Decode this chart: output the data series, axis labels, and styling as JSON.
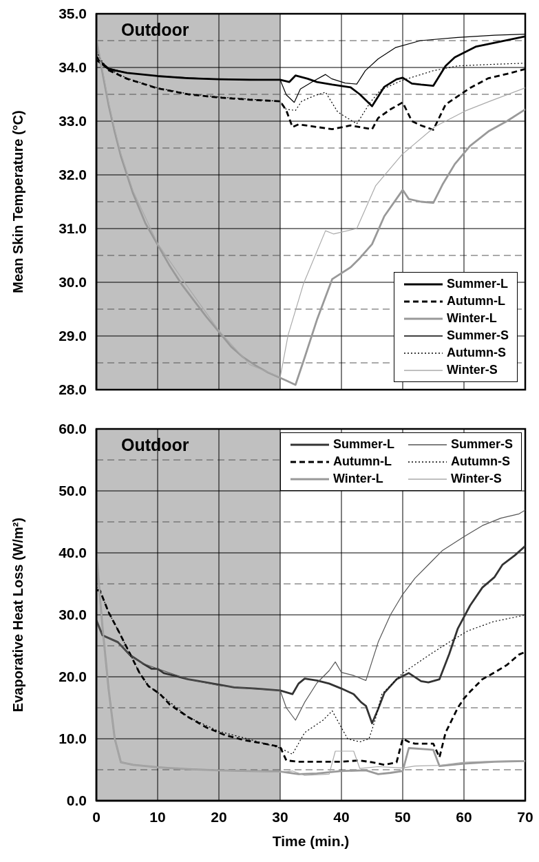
{
  "chart_data": [
    {
      "type": "line",
      "ylabel": "Mean Skin Temperature (°C)",
      "xlim": [
        0,
        70
      ],
      "xticks": [
        0,
        10,
        20,
        30,
        40,
        50,
        60,
        70
      ],
      "ylim": [
        28,
        35
      ],
      "yticks": [
        {
          "value": 28,
          "label": "28.0"
        },
        {
          "value": 28.5,
          "label": null
        },
        {
          "value": 29,
          "label": "29.0"
        },
        {
          "value": 29.5,
          "label": null
        },
        {
          "value": 30,
          "label": "30.0"
        },
        {
          "value": 30.5,
          "label": null
        },
        {
          "value": 31,
          "label": "31.0"
        },
        {
          "value": 31.5,
          "label": null
        },
        {
          "value": 32,
          "label": "32.0"
        },
        {
          "value": 32.5,
          "label": null
        },
        {
          "value": 33,
          "label": "33.0"
        },
        {
          "value": 33.5,
          "label": null
        },
        {
          "value": 34,
          "label": "34.0"
        },
        {
          "value": 34.5,
          "label": null
        },
        {
          "value": 35,
          "label": "35.0"
        }
      ],
      "tick_labels": "y",
      "grid": true,
      "legend": "bottom right",
      "marker": "none",
      "bands": [
        {
          "axis": "x",
          "from": 0,
          "to": 30,
          "label": "Outdoor",
          "color": "#c0c0c0"
        }
      ],
      "series": [
        {
          "name": "Summer-L",
          "color": "#000000",
          "line_style": "solid",
          "x": [
            0,
            2,
            5,
            10,
            15,
            20,
            25,
            30,
            31.5,
            32.5,
            34.5,
            36,
            38.5,
            41.5,
            43,
            45,
            47,
            49,
            50,
            51.5,
            53,
            55,
            57,
            58.5,
            62,
            65,
            70
          ],
          "values": [
            34.14,
            33.97,
            33.9,
            33.84,
            33.8,
            33.78,
            33.77,
            33.77,
            33.73,
            33.85,
            33.79,
            33.73,
            33.68,
            33.63,
            33.5,
            33.28,
            33.64,
            33.78,
            33.81,
            33.7,
            33.68,
            33.66,
            34.03,
            34.19,
            34.39,
            34.46,
            34.58
          ]
        },
        {
          "name": "Autumn-L",
          "color": "#000000",
          "line_style": "dashed",
          "x": [
            0,
            2,
            5,
            10,
            15,
            20,
            25,
            30,
            31,
            32,
            33,
            35.5,
            38.5,
            41.5,
            45,
            46,
            48,
            50,
            51.5,
            53,
            55,
            57,
            61,
            64,
            67,
            70
          ],
          "values": [
            34.2,
            33.95,
            33.79,
            33.61,
            33.5,
            33.44,
            33.4,
            33.37,
            33.2,
            32.89,
            32.94,
            32.9,
            32.85,
            32.92,
            32.85,
            33.06,
            33.22,
            33.35,
            33.0,
            32.92,
            32.84,
            33.31,
            33.62,
            33.8,
            33.88,
            33.97
          ]
        },
        {
          "name": "Winter-L",
          "color": "#999999",
          "line_style": "solid",
          "x": [
            0,
            1,
            2,
            3,
            4,
            5,
            6,
            8,
            10,
            12,
            14,
            16,
            18,
            20,
            22,
            24,
            26,
            28,
            30,
            31,
            32.5,
            34,
            36,
            38.5,
            41.5,
            43,
            45,
            47,
            50,
            51,
            53,
            55,
            56.5,
            58.5,
            61,
            64,
            67,
            70
          ],
          "values": [
            34.5,
            33.9,
            33.3,
            32.8,
            32.35,
            32.0,
            31.65,
            31.1,
            30.7,
            30.3,
            29.95,
            29.65,
            29.35,
            29.08,
            28.8,
            28.6,
            28.45,
            28.32,
            28.22,
            28.17,
            28.09,
            28.6,
            29.3,
            30.06,
            30.28,
            30.45,
            30.71,
            31.23,
            31.72,
            31.55,
            31.5,
            31.48,
            31.82,
            32.2,
            32.54,
            32.81,
            33.0,
            33.22
          ]
        },
        {
          "name": "Summer-S",
          "color": "#000000",
          "line_style": "solid",
          "x": [
            0,
            2,
            5,
            10,
            20,
            30,
            31,
            32.3,
            33.3,
            35.5,
            37.4,
            38.4,
            40.6,
            42.5,
            43.9,
            46,
            48.8,
            52.9,
            59,
            65,
            70
          ],
          "values": [
            34.18,
            33.99,
            33.9,
            33.84,
            33.78,
            33.77,
            33.49,
            33.35,
            33.6,
            33.75,
            33.87,
            33.79,
            33.71,
            33.69,
            33.94,
            34.16,
            34.37,
            34.5,
            34.56,
            34.6,
            34.62
          ]
        },
        {
          "name": "Autumn-S",
          "color": "#000000",
          "line_style": "dotted",
          "x": [
            0,
            1,
            2,
            5,
            10,
            15,
            20,
            25,
            30,
            31,
            32.5,
            33.5,
            35.5,
            37.4,
            39.4,
            42.5,
            44.7,
            46.4,
            49.9,
            55,
            59,
            65,
            70
          ],
          "values": [
            34.3,
            34.1,
            33.97,
            33.8,
            33.62,
            33.51,
            33.45,
            33.41,
            33.37,
            33.22,
            33.2,
            33.37,
            33.47,
            33.54,
            33.17,
            32.95,
            33.35,
            33.58,
            33.76,
            33.94,
            34.03,
            34.06,
            34.08
          ]
        },
        {
          "name": "Winter-S",
          "color": "#aaaaaa",
          "line_style": "solid",
          "x": [
            0,
            1,
            2,
            3,
            4,
            6,
            10,
            15,
            20,
            25,
            30,
            31.3,
            33.8,
            37.4,
            38.7,
            42.5,
            45.6,
            49.9,
            55.3,
            60.2,
            64.2,
            70
          ],
          "values": [
            34.6,
            33.95,
            33.35,
            32.85,
            32.4,
            31.7,
            30.72,
            29.9,
            29.1,
            28.47,
            28.23,
            29.02,
            29.97,
            30.96,
            30.9,
            31.0,
            31.8,
            32.38,
            32.9,
            33.19,
            33.37,
            33.62
          ]
        }
      ]
    },
    {
      "type": "line",
      "xlabel": "Time (min.)",
      "ylabel": "Evaporative Heat Loss (W/m²)",
      "xlim": [
        0,
        70
      ],
      "xticks": [
        0,
        10,
        20,
        30,
        40,
        50,
        60,
        70
      ],
      "ylim": [
        0,
        60
      ],
      "yticks": [
        {
          "value": 0,
          "label": "0.0"
        },
        {
          "value": 5,
          "label": null
        },
        {
          "value": 10,
          "label": "10.0"
        },
        {
          "value": 15,
          "label": null
        },
        {
          "value": 20,
          "label": "20.0"
        },
        {
          "value": 25,
          "label": null
        },
        {
          "value": 30,
          "label": "30.0"
        },
        {
          "value": 35,
          "label": null
        },
        {
          "value": 40,
          "label": "40.0"
        },
        {
          "value": 45,
          "label": null
        },
        {
          "value": 50,
          "label": "50.0"
        },
        {
          "value": 55,
          "label": null
        },
        {
          "value": 60,
          "label": "60.0"
        }
      ],
      "grid": true,
      "legend": "top right",
      "marker": "none",
      "bands": [
        {
          "axis": "x",
          "from": 0,
          "to": 30,
          "label": "Outdoor",
          "color": "#c0c0c0"
        }
      ],
      "series": [
        {
          "name": "Summer-L",
          "color": "#333333",
          "line_style": "solid",
          "x": [
            0,
            1,
            3.5,
            5.5,
            7.5,
            9,
            10,
            11,
            15,
            19,
            22.5,
            26,
            30,
            32,
            33,
            34,
            36,
            38,
            40,
            42,
            43.2,
            44,
            45,
            46,
            47,
            49,
            51,
            53,
            54.2,
            56,
            57.6,
            59,
            61,
            63,
            65,
            66.3,
            68.3,
            70
          ],
          "values": [
            29.1,
            26.7,
            25.6,
            23.5,
            22.2,
            21.3,
            21.3,
            20.6,
            19.6,
            18.9,
            18.3,
            18.1,
            17.8,
            17.2,
            18.9,
            19.7,
            19.4,
            18.9,
            18.1,
            17.2,
            15.9,
            15.3,
            12.5,
            14.8,
            17.4,
            19.6,
            20.6,
            19.3,
            19.1,
            19.6,
            23.7,
            27.8,
            31.5,
            34.4,
            36.1,
            38.1,
            39.6,
            41.1
          ]
        },
        {
          "name": "Autumn-L",
          "color": "#000000",
          "line_style": "dashed",
          "x": [
            0,
            0.6,
            2,
            3.6,
            5.5,
            7,
            8.5,
            10.4,
            12,
            15,
            18,
            21,
            24,
            28,
            30,
            31,
            33,
            36,
            40,
            43,
            45,
            47,
            49,
            50,
            51,
            52,
            55,
            56,
            57,
            59,
            60,
            61,
            63,
            65,
            67,
            69,
            70
          ],
          "values": [
            34,
            33.9,
            30.4,
            27.4,
            23.7,
            20.7,
            18.5,
            17.2,
            15.5,
            13.5,
            11.8,
            10.6,
            9.8,
            9.1,
            8.7,
            6.5,
            6.3,
            6.3,
            6.3,
            6.5,
            6.2,
            5.8,
            6.2,
            10,
            9.5,
            9.2,
            9.2,
            7,
            11,
            15,
            16.5,
            17.6,
            19.6,
            20.7,
            21.9,
            23.6,
            24
          ]
        },
        {
          "name": "Winter-L",
          "color": "#999999",
          "line_style": "solid",
          "x": [
            0,
            1,
            2,
            3,
            4,
            6,
            10,
            15,
            20,
            25,
            30,
            33,
            36,
            40,
            44,
            46,
            48,
            50,
            51,
            54,
            55,
            56,
            60,
            65,
            70
          ],
          "values": [
            40,
            28,
            18,
            10,
            6.2,
            5.8,
            5.4,
            5.1,
            4.9,
            4.8,
            4.7,
            4.3,
            4.4,
            4.8,
            4.9,
            4.3,
            4.5,
            4.8,
            8.5,
            8.3,
            8.2,
            5.6,
            6,
            6.3,
            6.4
          ]
        },
        {
          "name": "Summer-S",
          "color": "#555555",
          "line_style": "solid",
          "x": [
            0,
            1,
            3.5,
            5.5,
            7.5,
            10,
            15,
            20,
            25,
            30,
            31,
            32.5,
            34,
            36,
            38,
            39,
            40,
            42,
            44,
            46,
            48,
            50,
            52,
            54.6,
            56.5,
            60,
            63,
            66,
            69,
            70
          ],
          "values": [
            29.1,
            26.7,
            25.6,
            23.5,
            22.2,
            21.3,
            19.6,
            18.6,
            18.1,
            17.8,
            15,
            13,
            15.9,
            19,
            21,
            22.4,
            20.7,
            20.2,
            19.4,
            25.6,
            30,
            33.3,
            35.9,
            38.5,
            40.4,
            42.6,
            44.4,
            45.6,
            46.3,
            46.9
          ]
        },
        {
          "name": "Autumn-S",
          "color": "#000000",
          "line_style": "dotted",
          "x": [
            0,
            0.6,
            2,
            3.6,
            5.5,
            7,
            8.5,
            10.4,
            15,
            20,
            25,
            30,
            32,
            34,
            37,
            38.5,
            41,
            43,
            44.5,
            45.5,
            46.6,
            50,
            54.6,
            57.6,
            60.6,
            64.8,
            69.2,
            70
          ],
          "values": [
            34.5,
            33.9,
            30.4,
            27.4,
            23.7,
            20.7,
            18.5,
            17.2,
            13.5,
            11.2,
            9.9,
            8.5,
            7.5,
            11,
            13,
            14.5,
            10,
            9.5,
            10,
            13,
            17.2,
            20.6,
            23.7,
            25.6,
            27.4,
            28.9,
            29.8,
            30
          ]
        },
        {
          "name": "Winter-S",
          "color": "#aaaaaa",
          "line_style": "solid",
          "x": [
            0,
            1,
            2,
            3,
            4,
            6,
            10,
            15,
            20,
            25,
            30,
            32,
            34,
            38,
            39,
            42,
            43,
            46,
            50,
            52,
            56,
            60,
            65,
            70
          ],
          "values": [
            40,
            28,
            18,
            10,
            6.2,
            5.8,
            5.4,
            5.1,
            4.9,
            4.8,
            4.6,
            4.8,
            4.1,
            4.3,
            8,
            8,
            5.2,
            5.5,
            5.3,
            5.6,
            5.7,
            6.2,
            6.4,
            6.5
          ]
        }
      ]
    }
  ]
}
